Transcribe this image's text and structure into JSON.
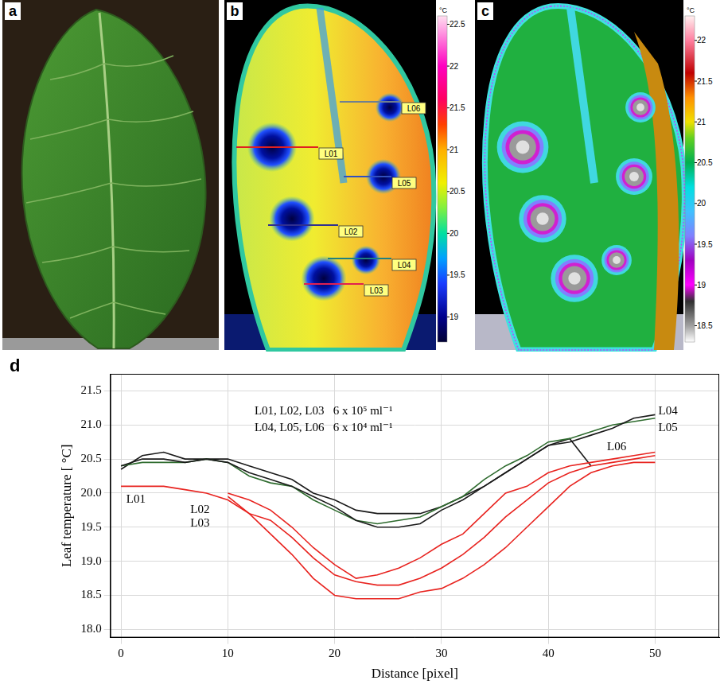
{
  "image_panels": [
    {
      "panel_label": "a"
    },
    {
      "panel_label": "b",
      "line_labels": [
        "L01",
        "L02",
        "L03",
        "L04",
        "L05",
        "L06"
      ],
      "colorbar": {
        "unit": "°C",
        "range": [
          18.7,
          22.6
        ],
        "ticks": [
          19,
          19.5,
          20,
          20.5,
          21,
          21.5,
          22,
          22.5
        ]
      }
    },
    {
      "panel_label": "c",
      "colorbar": {
        "unit": "°C",
        "range": [
          18.3,
          22.3
        ],
        "ticks": [
          18.5,
          19,
          19.5,
          20,
          20.5,
          21,
          21.5,
          22
        ]
      }
    }
  ],
  "chart_data": {
    "type": "line",
    "panel_label": "d",
    "x_label": "Distance [pixel]",
    "y_label": "Leaf temperature [ °C]",
    "annotations": [
      "L01, L02, L03   6 x 10⁵ ml⁻¹",
      "L04, L05, L06   6 x 10⁴ ml⁻¹"
    ],
    "x": [
      0,
      2,
      4,
      6,
      8,
      10,
      12,
      14,
      16,
      18,
      20,
      22,
      24,
      26,
      28,
      30,
      32,
      34,
      36,
      38,
      40,
      42,
      44,
      46,
      48,
      50
    ],
    "series": [
      {
        "name": "L01",
        "color": "#e8231f",
        "values": [
          20.1,
          20.1,
          20.1,
          20.05,
          20.0,
          19.9,
          19.7,
          19.4,
          19.1,
          18.75,
          18.5,
          18.45,
          18.45,
          18.45,
          18.55,
          18.6,
          18.75,
          18.95,
          19.2,
          19.5,
          19.8,
          20.1,
          20.3,
          20.4,
          20.45,
          20.45
        ]
      },
      {
        "name": "L02",
        "color": "#e8231f",
        "values": [
          null,
          null,
          null,
          null,
          null,
          20.0,
          19.9,
          19.75,
          19.5,
          19.2,
          18.95,
          18.75,
          18.8,
          18.9,
          19.05,
          19.25,
          19.4,
          19.7,
          20.0,
          20.1,
          20.3,
          20.4,
          20.45,
          20.5,
          20.55,
          20.6
        ]
      },
      {
        "name": "L03",
        "color": "#e8231f",
        "values": [
          null,
          null,
          null,
          null,
          null,
          19.95,
          19.7,
          19.6,
          19.35,
          19.05,
          18.8,
          18.7,
          18.65,
          18.65,
          18.75,
          18.9,
          19.1,
          19.35,
          19.65,
          19.9,
          20.15,
          20.3,
          20.4,
          20.45,
          20.5,
          20.55
        ]
      },
      {
        "name": "L04",
        "color": "#1a1a1a",
        "values": [
          20.4,
          20.5,
          20.5,
          20.45,
          20.5,
          20.45,
          20.3,
          20.2,
          20.1,
          19.95,
          19.8,
          19.6,
          19.5,
          19.5,
          19.55,
          19.75,
          19.9,
          20.1,
          20.3,
          20.5,
          20.7,
          20.75,
          20.85,
          20.95,
          21.1,
          21.15
        ]
      },
      {
        "name": "L05",
        "color": "#2e6b2e",
        "values": [
          20.4,
          20.45,
          20.45,
          20.45,
          20.5,
          20.45,
          20.25,
          20.15,
          20.1,
          19.9,
          19.75,
          19.6,
          19.55,
          19.6,
          19.65,
          19.8,
          19.95,
          20.2,
          20.4,
          20.55,
          20.75,
          20.8,
          20.9,
          21.0,
          21.05,
          21.1
        ]
      },
      {
        "name": "L06",
        "color": "#1a1a1a",
        "values": [
          20.35,
          20.55,
          20.6,
          20.5,
          20.5,
          20.5,
          20.4,
          20.3,
          20.2,
          20.0,
          19.9,
          19.75,
          19.7,
          19.7,
          19.7,
          19.8,
          19.95,
          20.1,
          20.3,
          20.5,
          20.7,
          20.8,
          20.4,
          null,
          null,
          null
        ]
      }
    ],
    "xlim": [
      -1,
      56
    ],
    "xticks": [
      0,
      10,
      20,
      30,
      40,
      50
    ],
    "ylim": [
      17.88,
      21.75
    ],
    "yticks": [
      {
        "value": 18,
        "label": "18.0"
      },
      18.5,
      {
        "value": 19,
        "label": "19.0"
      },
      19.5,
      {
        "value": 20,
        "label": "20.0"
      },
      20.5,
      {
        "value": 21,
        "label": "21.0"
      },
      21.5
    ],
    "grid": true
  }
}
